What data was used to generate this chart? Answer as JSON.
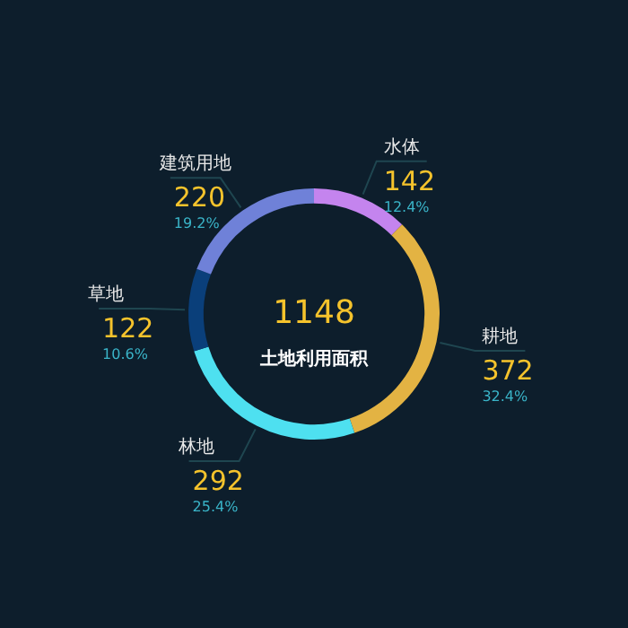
{
  "chart_data": {
    "type": "donut",
    "title": "土地利用面积",
    "annotations": [
      "1148",
      {
        "text": "12.4%",
        "x": "水体"
      },
      {
        "text": "32.4%",
        "x": "耕地"
      },
      {
        "text": "25.4%",
        "x": "林地"
      },
      {
        "text": "10.6%",
        "x": "草地"
      },
      {
        "text": "19.2%",
        "x": "建筑用地"
      }
    ],
    "categories": [
      "水体",
      "耕地",
      "林地",
      "草地",
      "建筑用地"
    ],
    "values": [
      142,
      372,
      292,
      122,
      220
    ],
    "colors": [
      "#c484ee",
      "#e3b343",
      "#4ee0f0",
      "#0a3f7a",
      "#6f81d8"
    ],
    "data_labels": true
  }
}
